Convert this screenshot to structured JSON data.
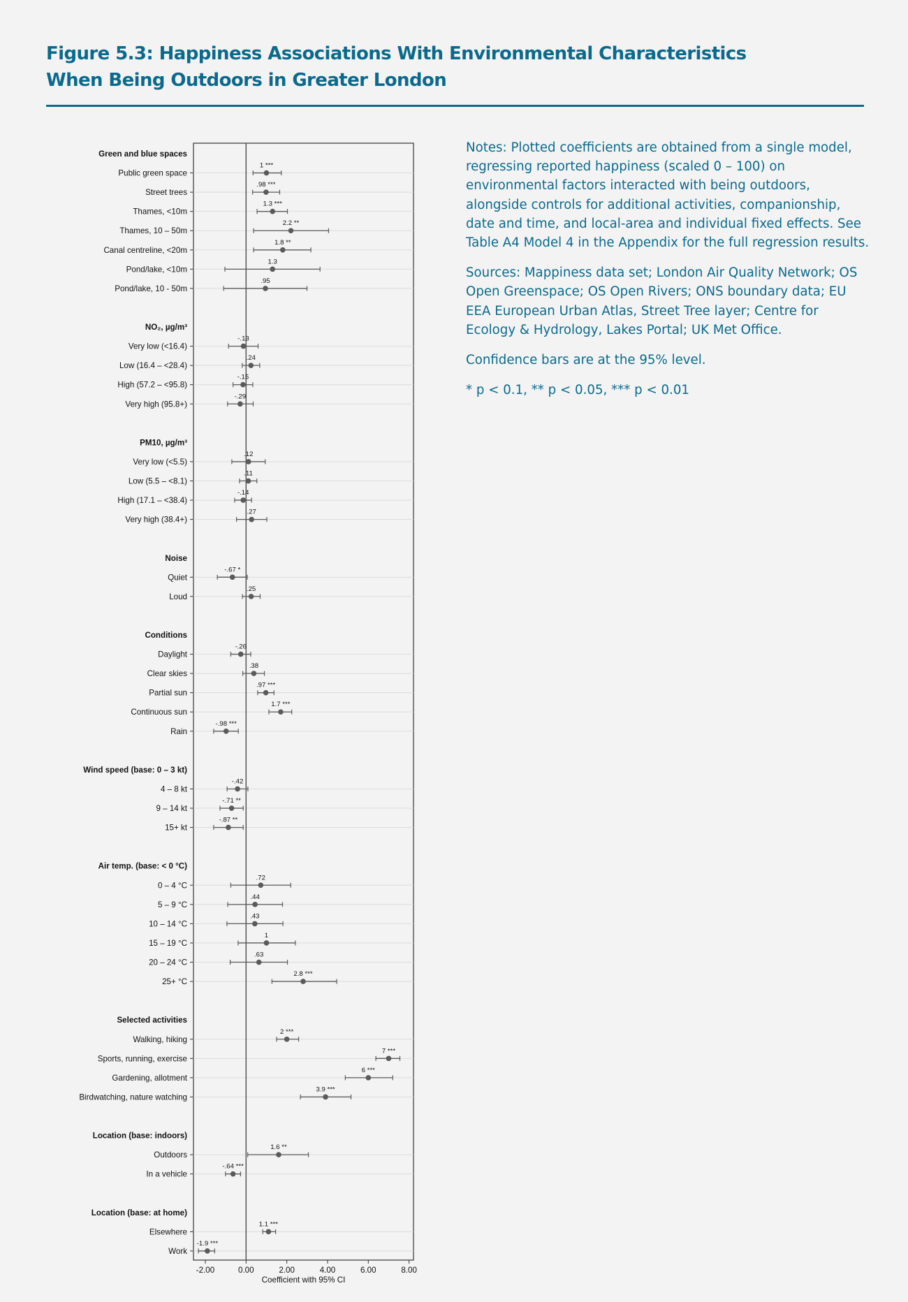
{
  "header": {
    "title_line1": "Figure 5.3: Happiness Associations With Environmental Characteristics",
    "title_line2": "When Being Outdoors in Greater London"
  },
  "notes": {
    "paragraphs": [
      "Notes: Plotted coefficients are obtained from a single model, regressing reported happiness (scaled 0 – 100) on environmental factors interacted with being outdoors, alongside controls for additional activities, companionship, date and time, and local-area and individual fixed effects. See Table A4 Model 4 in the Appendix for the full regression results.",
      "Sources: Mappiness data set; London Air Quality Network; OS Open Greenspace; OS Open Rivers; ONS boundary data; EU EEA European Urban Atlas, Street Tree layer; Centre for Ecology & Hydrology, Lakes Portal; UK Met Office.",
      "Confidence bars are at the 95% level.",
      "* p < 0.1, ** p < 0.05, *** p < 0.01"
    ]
  },
  "colors": {
    "accent": "#0b6a8c",
    "marker": "#5a5a5a",
    "gridline": "#dcdcdc",
    "background": "#f3f3f3"
  },
  "chart_data": {
    "type": "coefficient-plot",
    "xlabel": "Coefficient with 95% CI",
    "xlim": [
      -2.5,
      8.3
    ],
    "xticks": [
      -2,
      0,
      2,
      4,
      6,
      8
    ],
    "xtick_labels": [
      "-2.00",
      "0.00",
      "2.00",
      "4.00",
      "6.00",
      "8.00"
    ],
    "reference_line": 0,
    "grid": true,
    "groups": [
      {
        "title": "Green and blue spaces",
        "items": [
          {
            "label": "Public green space",
            "coef": 1.0,
            "value_label": "1 ***",
            "ci": [
              0.34,
              1.73
            ]
          },
          {
            "label": "Street trees",
            "coef": 0.98,
            "value_label": ".98 ***",
            "ci": [
              0.32,
              1.65
            ]
          },
          {
            "label": "Thames, <10m",
            "coef": 1.3,
            "value_label": "1.3 ***",
            "ci": [
              0.54,
              2.03
            ]
          },
          {
            "label": "Thames, 10 – 50m",
            "coef": 2.2,
            "value_label": "2.2 **",
            "ci": [
              0.37,
              4.05
            ]
          },
          {
            "label": "Canal centreline, <20m",
            "coef": 1.8,
            "value_label": "1.8 **",
            "ci": [
              0.37,
              3.18
            ]
          },
          {
            "label": "Pond/lake, <10m",
            "coef": 1.3,
            "value_label": "1.3",
            "ci": [
              -1.04,
              3.63
            ]
          },
          {
            "label": "Pond/lake, 10 - 50m",
            "coef": 0.95,
            "value_label": ".95",
            "ci": [
              -1.1,
              2.99
            ]
          }
        ]
      },
      {
        "title": "NO₂, µg/m³",
        "items": [
          {
            "label": "Very low (<16.4)",
            "coef": -0.13,
            "value_label": "-.13",
            "ci": [
              -0.86,
              0.59
            ]
          },
          {
            "label": "Low (16.4 – <28.4)",
            "coef": 0.24,
            "value_label": ".24",
            "ci": [
              -0.19,
              0.67
            ]
          },
          {
            "label": "High (57.2 – <95.8)",
            "coef": -0.15,
            "value_label": "-.15",
            "ci": [
              -0.64,
              0.33
            ]
          },
          {
            "label": "Very high (95.8+)",
            "coef": -0.29,
            "value_label": "-.29",
            "ci": [
              -0.91,
              0.35
            ]
          }
        ]
      },
      {
        "title": "PM10, µg/m³",
        "items": [
          {
            "label": "Very low (<5.5)",
            "coef": 0.12,
            "value_label": ".12",
            "ci": [
              -0.7,
              0.94
            ]
          },
          {
            "label": "Low (5.5 – <8.1)",
            "coef": 0.11,
            "value_label": ".11",
            "ci": [
              -0.32,
              0.53
            ]
          },
          {
            "label": "High (17.1 – <38.4)",
            "coef": -0.14,
            "value_label": "-.14",
            "ci": [
              -0.56,
              0.27
            ]
          },
          {
            "label": "Very high (38.4+)",
            "coef": 0.27,
            "value_label": ".27",
            "ci": [
              -0.47,
              1.02
            ]
          }
        ]
      },
      {
        "title": "Noise",
        "items": [
          {
            "label": "Quiet",
            "coef": -0.67,
            "value_label": "-.67 *",
            "ci": [
              -1.41,
              0.06
            ]
          },
          {
            "label": "Loud",
            "coef": 0.25,
            "value_label": ".25",
            "ci": [
              -0.18,
              0.69
            ]
          }
        ]
      },
      {
        "title": "Conditions",
        "items": [
          {
            "label": "Daylight",
            "coef": -0.26,
            "value_label": "-.26",
            "ci": [
              -0.75,
              0.23
            ]
          },
          {
            "label": "Clear skies",
            "coef": 0.38,
            "value_label": ".38",
            "ci": [
              -0.16,
              0.9
            ]
          },
          {
            "label": "Partial sun",
            "coef": 0.97,
            "value_label": ".97 ***",
            "ci": [
              0.57,
              1.37
            ]
          },
          {
            "label": "Continuous sun",
            "coef": 1.7,
            "value_label": "1.7 ***",
            "ci": [
              1.12,
              2.24
            ]
          },
          {
            "label": "Rain",
            "coef": -0.98,
            "value_label": "-.98 ***",
            "ci": [
              -1.59,
              -0.38
            ]
          }
        ]
      },
      {
        "title": "Wind speed (base: 0 – 3 kt)",
        "items": [
          {
            "label": "4 – 8 kt",
            "coef": -0.42,
            "value_label": "-.42",
            "ci": [
              -0.93,
              0.09
            ]
          },
          {
            "label": "9 – 14 kt",
            "coef": -0.71,
            "value_label": "-.71 **",
            "ci": [
              -1.28,
              -0.14
            ]
          },
          {
            "label": "15+ kt",
            "coef": -0.87,
            "value_label": "-.87 **",
            "ci": [
              -1.59,
              -0.14
            ]
          }
        ]
      },
      {
        "title": "Air temp. (base: < 0 °C)",
        "items": [
          {
            "label": "0 – 4 °C",
            "coef": 0.72,
            "value_label": ".72",
            "ci": [
              -0.75,
              2.19
            ]
          },
          {
            "label": "5 – 9 °C",
            "coef": 0.44,
            "value_label": ".44",
            "ci": [
              -0.9,
              1.79
            ]
          },
          {
            "label": "10 – 14 °C",
            "coef": 0.43,
            "value_label": ".43",
            "ci": [
              -0.94,
              1.81
            ]
          },
          {
            "label": "15 – 19 °C",
            "coef": 1.0,
            "value_label": "1",
            "ci": [
              -0.39,
              2.42
            ]
          },
          {
            "label": "20 – 24 °C",
            "coef": 0.63,
            "value_label": ".63",
            "ci": [
              -0.78,
              2.03
            ]
          },
          {
            "label": "25+ °C",
            "coef": 2.8,
            "value_label": "2.8 ***",
            "ci": [
              1.27,
              4.45
            ]
          }
        ]
      },
      {
        "title": "Selected activities",
        "items": [
          {
            "label": "Walking, hiking",
            "coef": 2.0,
            "value_label": "2 ***",
            "ci": [
              1.5,
              2.58
            ]
          },
          {
            "label": "Sports, running, exercise",
            "coef": 7.0,
            "value_label": "7 ***",
            "ci": [
              6.37,
              7.55
            ]
          },
          {
            "label": "Gardening, allotment",
            "coef": 6.0,
            "value_label": "6 ***",
            "ci": [
              4.87,
              7.2
            ]
          },
          {
            "label": "Birdwatching, nature watching",
            "coef": 3.9,
            "value_label": "3.9 ***",
            "ci": [
              2.67,
              5.15
            ]
          }
        ]
      },
      {
        "title": "Location (base: indoors)",
        "items": [
          {
            "label": "Outdoors",
            "coef": 1.6,
            "value_label": "1.6 **",
            "ci": [
              0.08,
              3.06
            ]
          },
          {
            "label": "In a vehicle",
            "coef": -0.64,
            "value_label": "-.64 ***",
            "ci": [
              -1.01,
              -0.27
            ]
          }
        ]
      },
      {
        "title": "Location (base: at home)",
        "items": [
          {
            "label": "Elsewhere",
            "coef": 1.1,
            "value_label": "1.1 ***",
            "ci": [
              0.82,
              1.45
            ]
          },
          {
            "label": "Work",
            "coef": -1.9,
            "value_label": "-1.9 ***",
            "ci": [
              -2.34,
              -1.54
            ]
          }
        ]
      }
    ]
  }
}
